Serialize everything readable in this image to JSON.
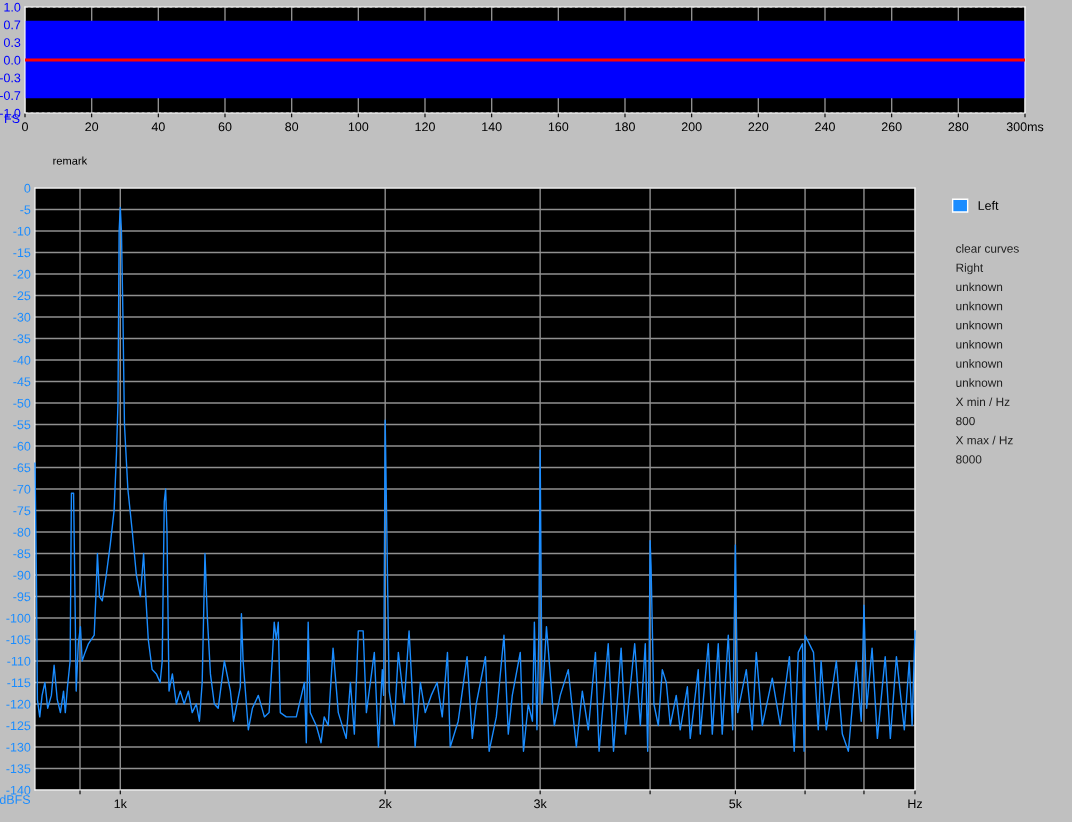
{
  "chart_data": [
    {
      "type": "line",
      "ylabel": "FS",
      "xlim": [
        0,
        300
      ],
      "ylim": [
        -1.0,
        1.0
      ],
      "xticks": [
        0,
        20,
        40,
        60,
        80,
        100,
        120,
        140,
        160,
        180,
        200,
        220,
        240,
        260,
        280,
        {
          "value": 300,
          "label": "300ms"
        }
      ],
      "yticks": [
        {
          "value": 1.0,
          "label": "1.0"
        },
        {
          "value": 0.667,
          "label": "0.7"
        },
        {
          "value": 0.333,
          "label": "0.3"
        },
        {
          "value": 0.0,
          "label": "0.0"
        },
        {
          "value": -0.333,
          "label": "-0.3"
        },
        {
          "value": -0.667,
          "label": "-0.7"
        },
        {
          "value": -1.0,
          "label": "-1.0"
        }
      ],
      "grid": true,
      "bands": [
        {
          "axis": "y",
          "from": -0.72,
          "to": 0.74,
          "color": "#0000ff"
        }
      ],
      "ref_lines": [
        {
          "axis": "y",
          "value": 0,
          "color": "#ff0000"
        }
      ]
    },
    {
      "type": "line",
      "ylabel": "dBFS",
      "log": "x",
      "xlim": [
        800,
        8000
      ],
      "ylim": [
        -140,
        0
      ],
      "xticks": [
        {
          "value": 900,
          "label": null
        },
        {
          "value": 1000,
          "label": "1k"
        },
        {
          "value": 2000,
          "label": "2k"
        },
        {
          "value": 3000,
          "label": "3k"
        },
        {
          "value": 4000,
          "label": null
        },
        {
          "value": 5000,
          "label": "5k"
        },
        {
          "value": 6000,
          "label": null
        },
        {
          "value": 7000,
          "label": null
        },
        {
          "value": 8000,
          "label": "Hz"
        }
      ],
      "yticks": [
        0,
        -5,
        -10,
        -15,
        -20,
        -25,
        -30,
        -35,
        -40,
        -45,
        -50,
        -55,
        -60,
        -65,
        -70,
        -75,
        -80,
        -85,
        -90,
        -95,
        -100,
        -105,
        -110,
        -115,
        -120,
        -125,
        -130,
        -135,
        -140
      ],
      "grid": true,
      "legend": "right",
      "annotations": [
        "remark"
      ],
      "series": [
        {
          "name": "Left",
          "color": "#1a8cff",
          "x": [
            800,
            803,
            805,
            810,
            815,
            821,
            827,
            835,
            841,
            848,
            855,
            862,
            866,
            871,
            877,
            880,
            885,
            888,
            891,
            896,
            901,
            905,
            912,
            920,
            934,
            939,
            942,
            947,
            954,
            964,
            974,
            984,
            990,
            994,
            997,
            1000,
            1003,
            1007,
            1011,
            1020,
            1032,
            1043,
            1054,
            1063,
            1067,
            1076,
            1087,
            1099,
            1110,
            1116,
            1122,
            1126,
            1130,
            1136,
            1146,
            1158,
            1170,
            1182,
            1195,
            1207,
            1220,
            1230,
            1239,
            1248,
            1256,
            1266,
            1279,
            1292,
            1313,
            1334,
            1345,
            1357,
            1369,
            1373,
            1379,
            1398,
            1413,
            1435,
            1458,
            1476,
            1488,
            1496,
            1504,
            1512,
            1520,
            1544,
            1585,
            1619,
            1627,
            1635,
            1644,
            1670,
            1691,
            1705,
            1723,
            1745,
            1769,
            1806,
            1826,
            1845,
            1864,
            1888,
            1904,
            1944,
            1965,
            1985,
            1992,
            2000,
            2021,
            2048,
            2070,
            2102,
            2129,
            2163,
            2193,
            2221,
            2256,
            2291,
            2322,
            2354,
            2371,
            2421,
            2478,
            2512,
            2538,
            2600,
            2625,
            2675,
            2729,
            2760,
            2789,
            2848,
            2872,
            2908,
            2940,
            2955,
            2975,
            2990,
            3000,
            3015,
            3050,
            3113,
            3162,
            3229,
            3298,
            3350,
            3403,
            3467,
            3500,
            3585,
            3635,
            3708,
            3751,
            3842,
            3899,
            3950,
            3975,
            3990,
            4000,
            4010,
            4040,
            4087,
            4130,
            4173,
            4217,
            4283,
            4328,
            4410,
            4443,
            4537,
            4561,
            4658,
            4707,
            4781,
            4831,
            4908,
            4965,
            5000,
            5030,
            5145,
            5226,
            5281,
            5365,
            5507,
            5623,
            5760,
            5832,
            5894,
            5960,
            5985,
            6000,
            6134,
            6211,
            6257,
            6343,
            6512,
            6615,
            6720,
            6861,
            6950,
            7000,
            7050,
            7150,
            7250,
            7400,
            7500,
            7620,
            7780,
            7880,
            7940,
            8000
          ],
          "values": [
            -64,
            -91,
            -119,
            -123,
            -118,
            -115,
            -121,
            -118,
            -111,
            -119,
            -122,
            -117,
            -122,
            -116,
            -110,
            -71,
            -71,
            -93,
            -117,
            -106,
            -102,
            -110,
            -108,
            -106,
            -104,
            -93,
            -85,
            -95,
            -96,
            -90,
            -83,
            -75,
            -62,
            -50,
            -10,
            -4.5,
            -10,
            -30,
            -55,
            -70,
            -80,
            -90,
            -95,
            -85,
            -92,
            -105,
            -112,
            -113,
            -115,
            -110,
            -73,
            -70,
            -80,
            -117,
            -113,
            -120,
            -117,
            -120,
            -117,
            -122,
            -120,
            -124,
            -115,
            -85,
            -100,
            -113,
            -120,
            -121,
            -110,
            -117,
            -124,
            -120,
            -116,
            -99,
            -110,
            -126,
            -121,
            -118,
            -123,
            -122,
            -110,
            -101,
            -105,
            -101,
            -122,
            -123,
            -123,
            -115,
            -129,
            -101,
            -122,
            -125,
            -129,
            -123,
            -125,
            -107,
            -122,
            -128,
            -115,
            -127,
            -103,
            -103,
            -122,
            -108,
            -130,
            -112,
            -118,
            -54,
            -117,
            -125,
            -108,
            -120,
            -103,
            -130,
            -115,
            -122,
            -118,
            -115,
            -123,
            -108,
            -130,
            -124,
            -109,
            -128,
            -120,
            -109,
            -131,
            -123,
            -104,
            -127,
            -118,
            -108,
            -131,
            -120,
            -124,
            -101,
            -126,
            -103,
            -61,
            -120,
            -102,
            -125,
            -118,
            -112,
            -130,
            -117,
            -126,
            -108,
            -131,
            -106,
            -131,
            -107,
            -127,
            -106,
            -125,
            -106,
            -131,
            -110,
            -82,
            -88,
            -120,
            -125,
            -112,
            -115,
            -125,
            -118,
            -126,
            -116,
            -128,
            -112,
            -127,
            -106,
            -127,
            -106,
            -127,
            -104,
            -126,
            -83,
            -122,
            -112,
            -126,
            -108,
            -125,
            -114,
            -125,
            -109,
            -131,
            -108,
            -106,
            -131,
            -104,
            -108,
            -126,
            -110,
            -126,
            -110,
            -127,
            -131,
            -110,
            -124,
            -97,
            -121,
            -107,
            -128,
            -109,
            -128,
            -109,
            -126,
            -110,
            -125,
            -103
          ]
        }
      ]
    },
    {
      "type": "other",
      "annotations": [
        "clear curves",
        "Right",
        "unknown",
        "unknown",
        "unknown",
        "unknown",
        "unknown",
        "unknown",
        "X min / Hz",
        "800",
        "X max / Hz",
        "8000"
      ]
    }
  ]
}
